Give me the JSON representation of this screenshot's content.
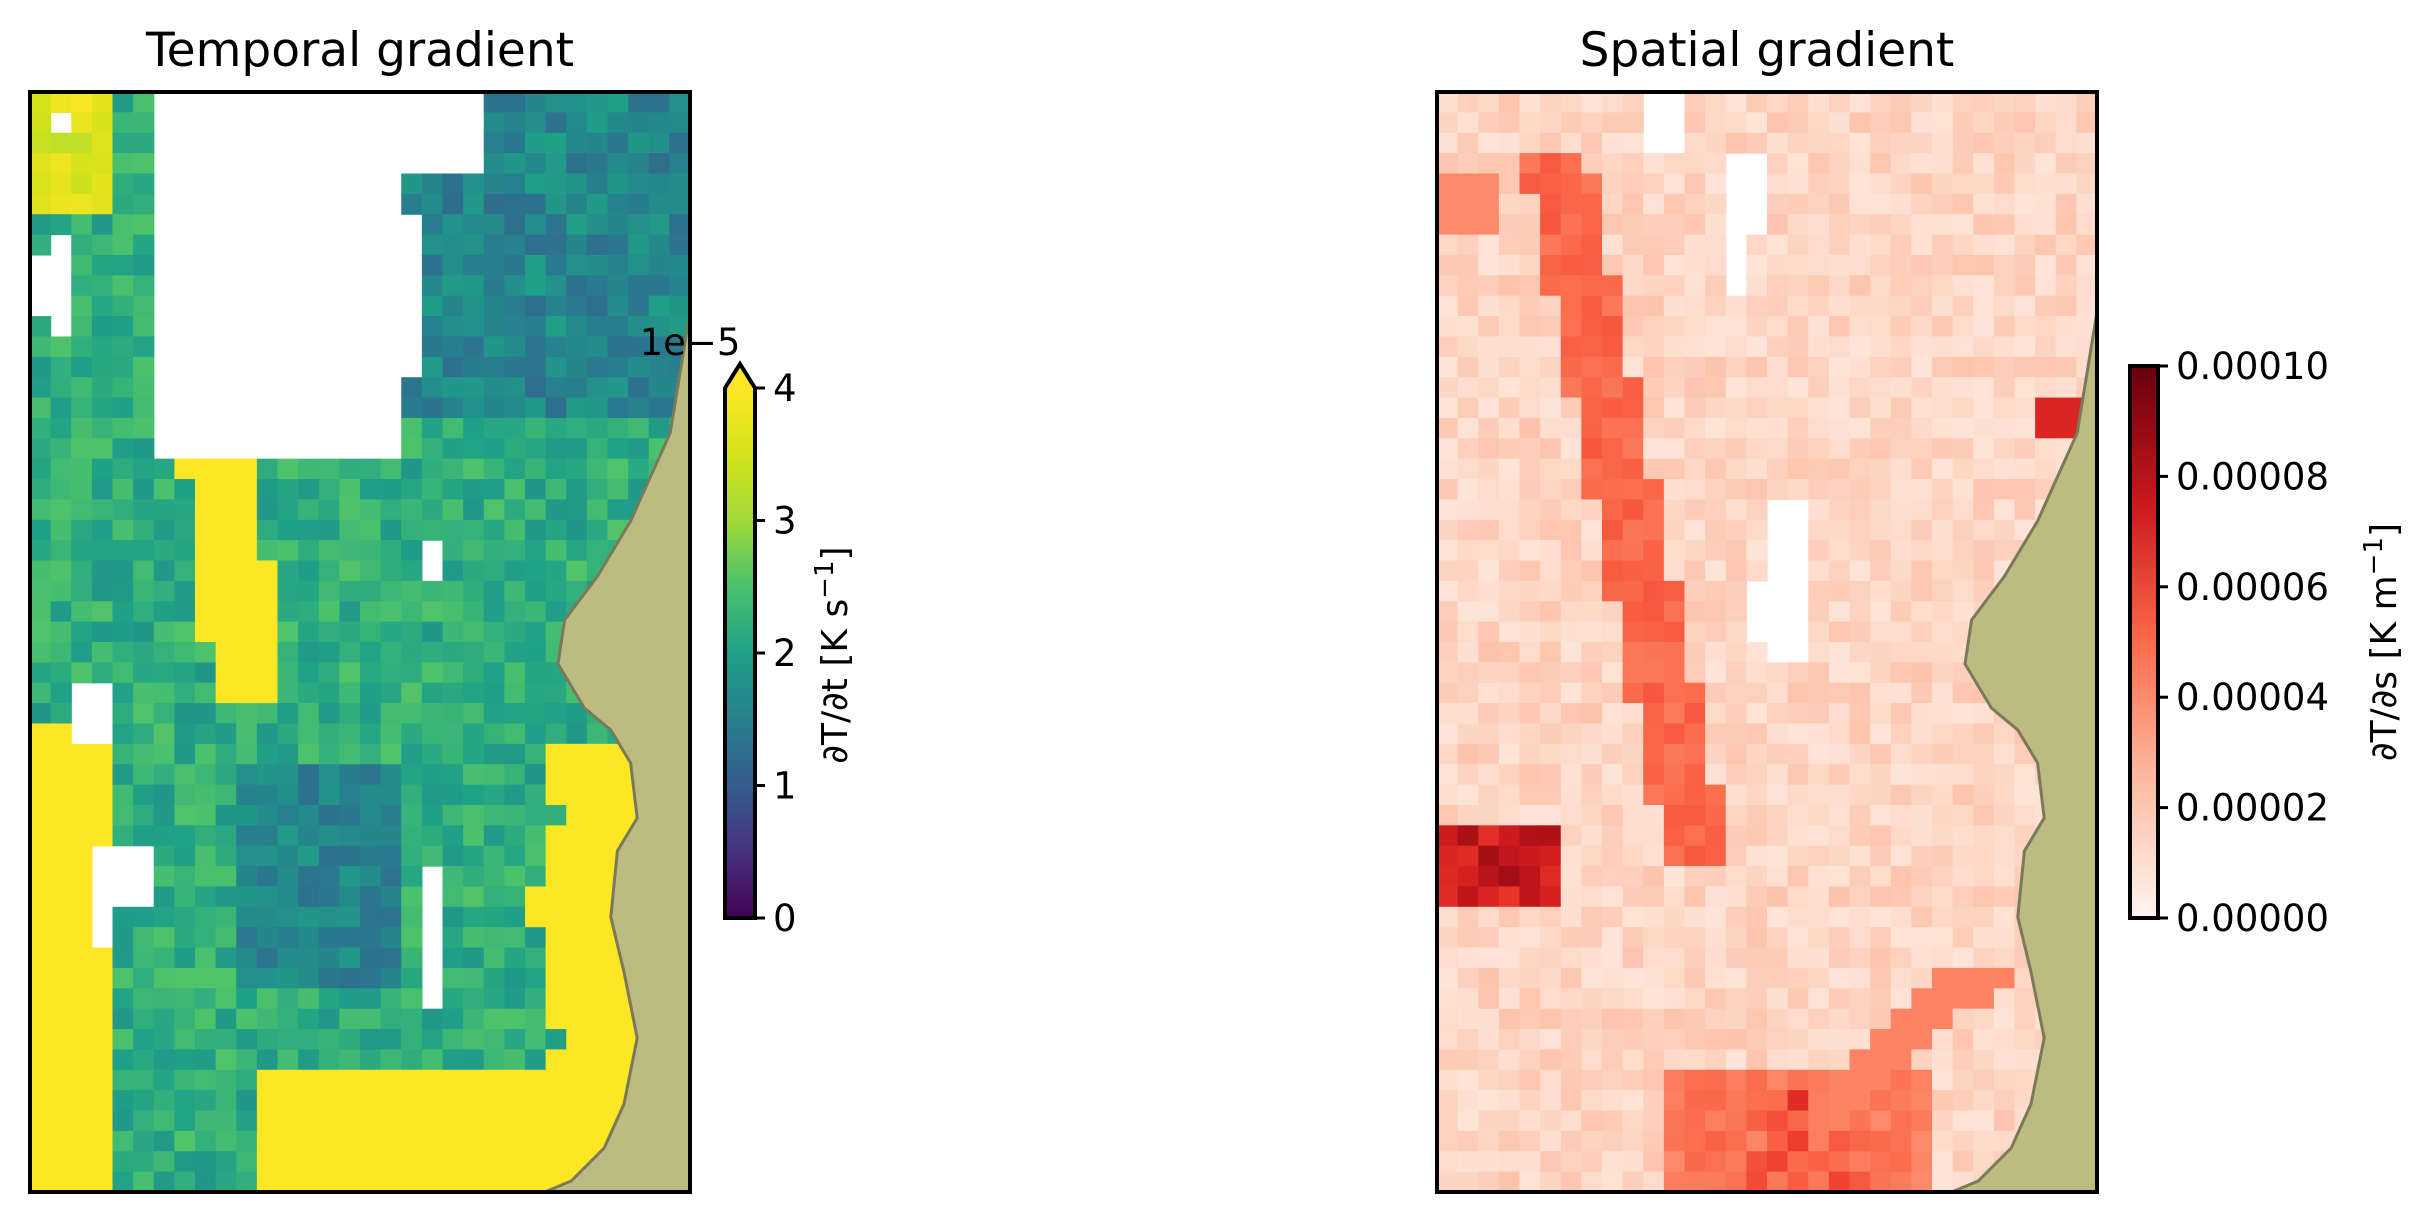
{
  "chart_data": [
    {
      "type": "heatmap",
      "title": "Temporal gradient",
      "grid": "32 columns x 54 rows of cells with a land mask along the right edge",
      "colormap": "viridis",
      "colors": {
        "low": "#440154",
        "mid": "#21918c",
        "high": "#fde725",
        "land": "#bdba82"
      },
      "colorbar": {
        "label_main": "∂T/∂t [K s",
        "label_exp": "−1",
        "label_end": "]",
        "offset_text": "1e−5",
        "range": [
          0,
          4
        ],
        "ticks": [
          "0",
          "1",
          "2",
          "3",
          "4"
        ],
        "extend": "max"
      },
      "values_scale": 1e-05,
      "typical_values": {
        "coastal_band": 4.0,
        "interior": 2.3,
        "northeast": 1.2
      }
    },
    {
      "type": "heatmap",
      "title": "Spatial gradient",
      "grid": "32 columns x 54 rows of cells with a land mask along the right edge",
      "colormap": "Reds",
      "colors": {
        "low": "#fff5f0",
        "mid": "#fb6a4a",
        "high": "#67000d",
        "land": "#bdba82"
      },
      "colorbar": {
        "label_main": "∂T/∂s [K m",
        "label_exp": "−1",
        "label_end": "]",
        "range": [
          0,
          0.0001
        ],
        "ticks": [
          "0.00000",
          "0.00002",
          "0.00004",
          "0.00006",
          "0.00008",
          "0.00010"
        ]
      },
      "typical_values": {
        "background": 1e-05,
        "front_band": 4e-05,
        "max_spot": 9e-05
      }
    }
  ]
}
